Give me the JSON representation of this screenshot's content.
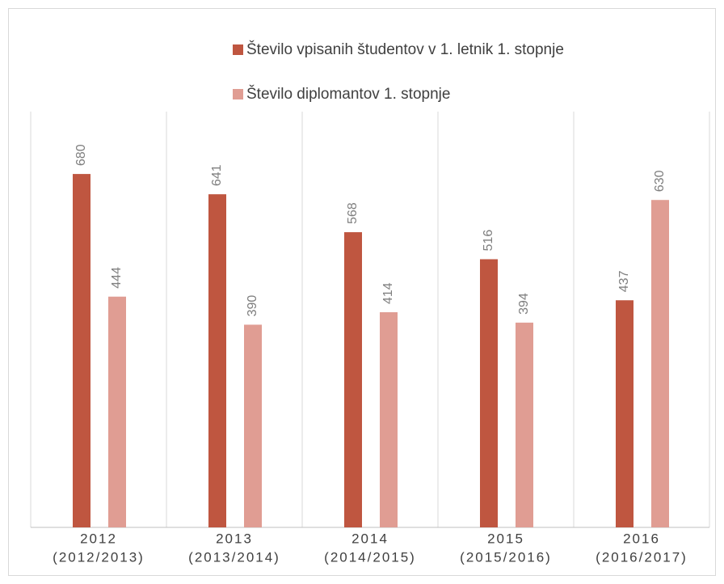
{
  "chart_data": {
    "type": "bar",
    "categories": [
      [
        "2012",
        "(2012/2013)"
      ],
      [
        "2013",
        "(2013/2014)"
      ],
      [
        "2014",
        "(2014/2015)"
      ],
      [
        "2015",
        "(2015/2016)"
      ],
      [
        "2016",
        "(2016/2017)"
      ]
    ],
    "series": [
      {
        "name": "Število vpisanih študentov v 1. letnik 1. stopnje",
        "color": "#bf5640",
        "values": [
          680,
          641,
          568,
          516,
          437
        ]
      },
      {
        "name": "Število diplomantov 1. stopnje",
        "color": "#e09d93",
        "values": [
          444,
          390,
          414,
          394,
          630
        ]
      }
    ],
    "ylim": [
      0,
      800
    ]
  }
}
